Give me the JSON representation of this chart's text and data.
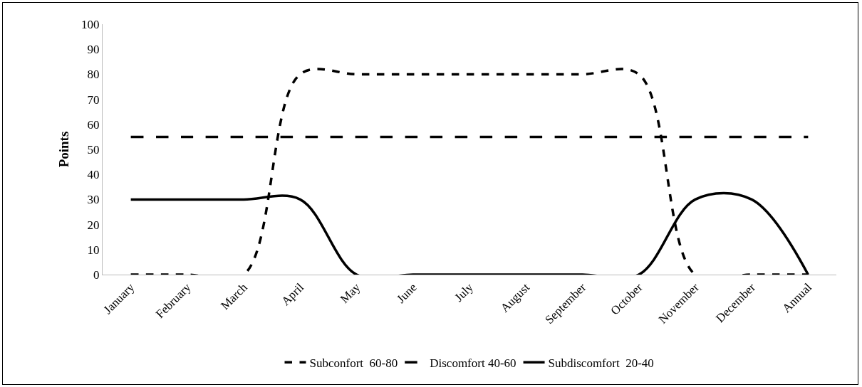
{
  "chart_data": {
    "type": "line",
    "ylabel": "Points",
    "categories": [
      "January",
      "February",
      "March",
      "April",
      "May",
      "June",
      "July",
      "August",
      "September",
      "October",
      "November",
      "December",
      "Annual"
    ],
    "series": [
      {
        "name": "Subconfort  60-80",
        "color": "#000000",
        "line_style": "dashed",
        "values": [
          0,
          0,
          0,
          80,
          80,
          80,
          80,
          80,
          80,
          80,
          0,
          0,
          0
        ]
      },
      {
        "name": "Discomfort 40-60",
        "color": "#000000",
        "line_style": "dashed",
        "values": [
          55,
          55,
          55,
          55,
          55,
          55,
          55,
          55,
          55,
          55,
          55,
          55,
          55
        ]
      },
      {
        "name": "Subdiscomfort  20-40",
        "color": "#000000",
        "line_style": "solid",
        "values": [
          30,
          30,
          30,
          30,
          0,
          0,
          0,
          0,
          0,
          0,
          30,
          30,
          0
        ]
      }
    ],
    "ylim": [
      0,
      100
    ],
    "yticks": [
      0,
      10,
      20,
      30,
      40,
      50,
      60,
      70,
      80,
      90,
      100
    ],
    "grid": false,
    "legend": "bottom",
    "marker": "none"
  }
}
